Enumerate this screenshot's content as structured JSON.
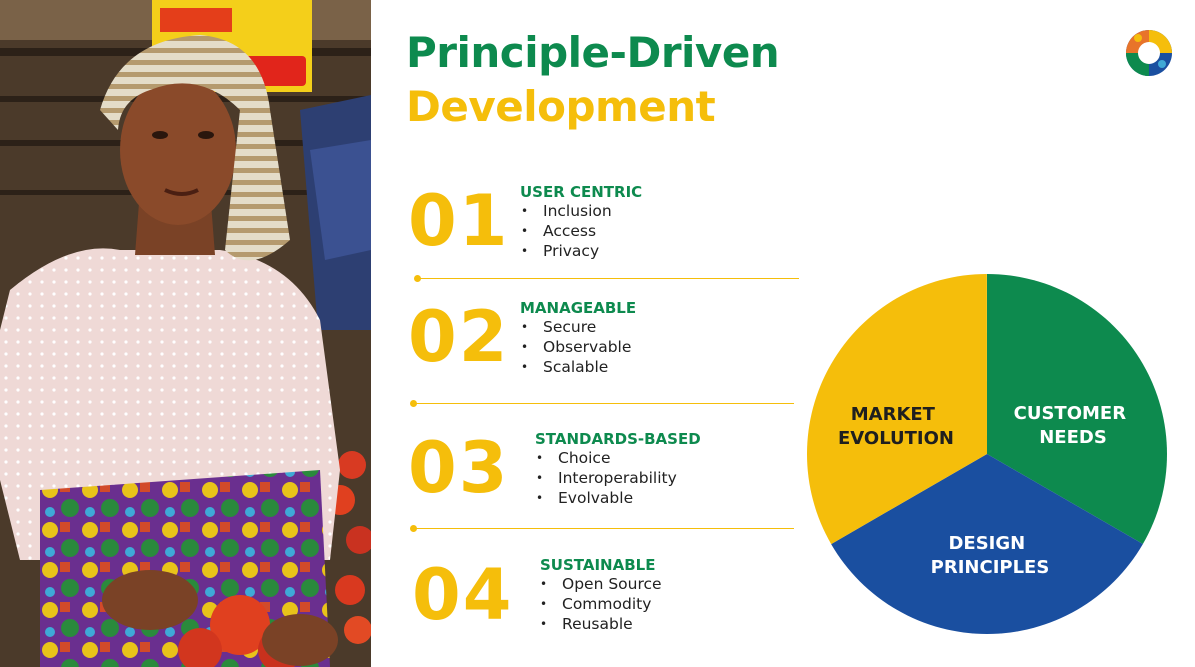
{
  "title": {
    "line1": "Principle-Driven",
    "line2": "Development"
  },
  "principles": [
    {
      "number": "01",
      "heading": "USER CENTRIC",
      "items": [
        "Inclusion",
        "Access",
        "Privacy"
      ]
    },
    {
      "number": "02",
      "heading": "MANAGEABLE",
      "items": [
        "Secure",
        "Observable",
        "Scalable"
      ]
    },
    {
      "number": "03",
      "heading": "STANDARDS-BASED",
      "items": [
        "Choice",
        "Interoperability",
        "Evolvable"
      ]
    },
    {
      "number": "04",
      "heading": "SUSTAINABLE",
      "items": [
        "Open Source",
        "Commodity",
        "Reusable"
      ]
    }
  ],
  "pie": {
    "segments": [
      {
        "line1": "CUSTOMER",
        "line2": "NEEDS",
        "color": "#0d8a4e",
        "share": 0.3333,
        "text_color": "#ffffff"
      },
      {
        "line1": "DESIGN",
        "line2": "PRINCIPLES",
        "color": "#1a4fa0",
        "share": 0.3333,
        "text_color": "#ffffff"
      },
      {
        "line1": "MARKET",
        "line2": "EVOLUTION",
        "color": "#f5be0b",
        "share": 0.3333,
        "text_color": "#1f1f1f"
      }
    ]
  },
  "colors": {
    "green": "#0d8a4e",
    "yellow": "#f5be0b",
    "blue": "#1a4fa0"
  }
}
